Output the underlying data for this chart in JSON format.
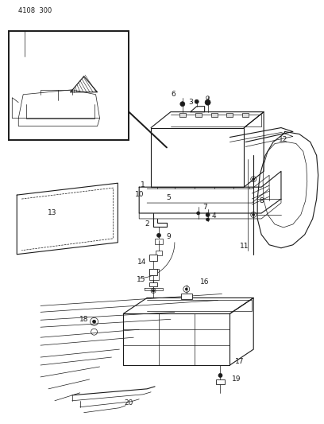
{
  "title": "4108  300",
  "background_color": "#ffffff",
  "line_color": "#1a1a1a",
  "fig_width": 4.08,
  "fig_height": 5.33,
  "dpi": 100,
  "lw_thin": 0.5,
  "lw_med": 0.8,
  "lw_thick": 1.4,
  "label_fs": 6.0
}
